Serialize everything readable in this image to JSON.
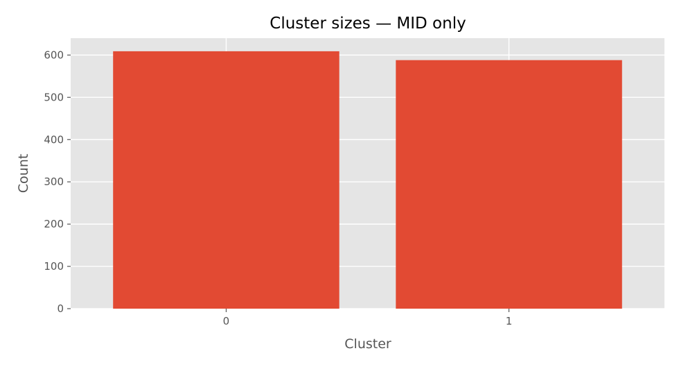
{
  "chart_data": {
    "type": "bar",
    "title": "Cluster sizes — MID only",
    "xlabel": "Cluster",
    "ylabel": "Count",
    "categories": [
      "0",
      "1"
    ],
    "values": [
      609,
      588
    ],
    "ylim": [
      0,
      640
    ],
    "yticks": [
      0,
      100,
      200,
      300,
      400,
      500,
      600
    ],
    "yticks_labels": [
      "0",
      "100",
      "200",
      "300",
      "400",
      "500",
      "600"
    ],
    "grid": true,
    "colors": {
      "bar": "#E24A33",
      "plot_bg": "#E5E5E5",
      "grid": "#FFFFFF"
    }
  }
}
